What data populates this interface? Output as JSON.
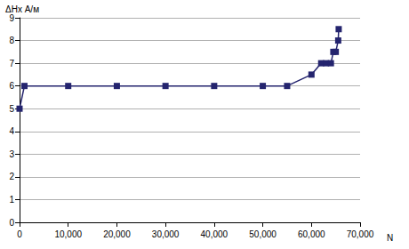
{
  "chart_data": {
    "type": "line",
    "x_label": "N",
    "y_label": "ΔHx А/м",
    "x": [
      0,
      1000,
      10000,
      20000,
      30000,
      40000,
      50000,
      55000,
      60000,
      62000,
      63000,
      64000,
      64500,
      65000,
      65500,
      65600
    ],
    "values": [
      5,
      6,
      6,
      6,
      6,
      6,
      6,
      6,
      6.5,
      7,
      7,
      7,
      7.5,
      7.5,
      8,
      8.5
    ],
    "color": "#24246e",
    "marker": "square",
    "xlim": [
      0,
      70000
    ],
    "xticks": [
      0,
      10000,
      20000,
      30000,
      40000,
      50000,
      60000,
      70000
    ],
    "ylim": [
      0,
      9
    ],
    "yticks": [
      0,
      1,
      2,
      3,
      4,
      5,
      6,
      7,
      8,
      9
    ],
    "grid": true
  }
}
